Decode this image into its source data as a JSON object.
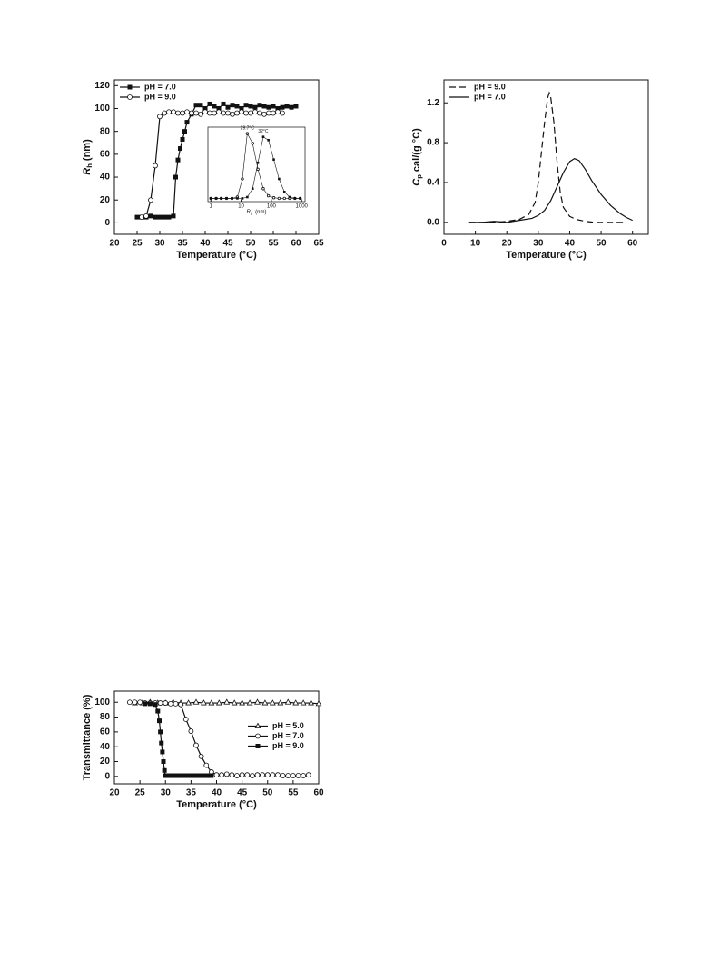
{
  "chart_data": [
    {
      "type": "line",
      "x_label": "Temperature (°C)",
      "y_label": {
        "symbol": "R",
        "subscript": "h",
        "unit": "(nm)"
      },
      "xlim": [
        20,
        65
      ],
      "xticks": [
        20,
        25,
        30,
        35,
        40,
        45,
        50,
        55,
        60,
        65
      ],
      "ylim": [
        -10,
        125
      ],
      "yticks": [
        0,
        20,
        40,
        60,
        80,
        100,
        120
      ],
      "legend": "upper left",
      "series": [
        {
          "name": "pH = 7.0",
          "color": "#111111",
          "marker": "square",
          "line": "solid",
          "x": [
            25,
            26,
            27,
            28,
            29,
            30,
            31,
            32,
            33,
            33.5,
            34,
            34.5,
            35,
            35.5,
            36,
            37,
            38,
            39,
            40,
            41,
            42,
            43,
            44,
            45,
            46,
            47,
            48,
            49,
            50,
            51,
            52,
            53,
            54,
            55,
            56,
            57,
            58,
            59,
            60
          ],
          "values": [
            5,
            5,
            5,
            6,
            5,
            5,
            5,
            5,
            6,
            40,
            55,
            65,
            73,
            80,
            88,
            95,
            103,
            103,
            100,
            104,
            102,
            100,
            104,
            101,
            103,
            102,
            100,
            103,
            102,
            101,
            103,
            102,
            101,
            102,
            100,
            101,
            102,
            101,
            102
          ]
        },
        {
          "name": "pH = 9.0",
          "color": "#111111",
          "marker": "circle",
          "line": "solid",
          "x": [
            26,
            27,
            28,
            29,
            30,
            31,
            32,
            33,
            34,
            35,
            36,
            37,
            38,
            39,
            40,
            41,
            42,
            43,
            44,
            45,
            46,
            47,
            48,
            49,
            50,
            51,
            52,
            53,
            54,
            55,
            56,
            57
          ],
          "values": [
            5,
            6,
            20,
            50,
            93,
            96,
            97,
            97,
            96,
            96,
            97,
            96,
            96,
            95,
            97,
            96,
            96,
            97,
            96,
            96,
            95,
            96,
            97,
            96,
            96,
            97,
            96,
            95,
            96,
            96,
            97,
            96
          ]
        }
      ]
    },
    {
      "type": "line",
      "xscale": "log",
      "x_label": {
        "symbol": "R",
        "subscript": "h",
        "unit": "(nm)"
      },
      "xlim": [
        0.8,
        1300
      ],
      "xticks": [
        1,
        10,
        100,
        1000
      ],
      "ylim": [
        -0.05,
        1.1
      ],
      "label_series": true,
      "series": [
        {
          "name": "29.7°C",
          "color": "#111111",
          "marker": "circle",
          "line": "solid",
          "x": [
            1,
            1.5,
            2.2,
            3.3,
            5,
            7.5,
            11,
            16,
            24,
            36,
            54,
            80,
            120,
            180,
            270,
            400,
            600,
            900
          ],
          "values": [
            0,
            0,
            0,
            0,
            0,
            0.02,
            0.3,
            1.0,
            0.85,
            0.45,
            0.15,
            0.04,
            0.01,
            0,
            0,
            0,
            0,
            0
          ]
        },
        {
          "name": "32°C",
          "color": "#111111",
          "marker": "square",
          "line": "solid",
          "x": [
            1,
            1.5,
            2.2,
            3.3,
            5,
            7.5,
            11,
            16,
            24,
            36,
            54,
            80,
            120,
            180,
            270,
            400,
            600,
            900
          ],
          "values": [
            0,
            0,
            0,
            0,
            0,
            0,
            0,
            0.02,
            0.15,
            0.55,
            0.95,
            0.9,
            0.6,
            0.3,
            0.1,
            0.02,
            0,
            0
          ]
        }
      ]
    },
    {
      "type": "line",
      "x_label": "Temperature (°C)",
      "y_label": {
        "symbol": "C",
        "subscript": "p",
        "unit": "cal/(g °C)"
      },
      "xlim": [
        0,
        65
      ],
      "xticks": [
        0,
        10,
        20,
        30,
        40,
        50,
        60
      ],
      "ylim": [
        -0.12,
        1.43
      ],
      "yticks": [
        {
          "value": 0,
          "label": "0.0"
        },
        {
          "value": 0.4,
          "label": "0.4"
        },
        {
          "value": 0.8,
          "label": "0.8"
        },
        {
          "value": 1.2,
          "label": "1.2"
        }
      ],
      "legend": "upper left",
      "series": [
        {
          "name": "pH = 9.0",
          "color": "#111111",
          "marker": "none",
          "line": "dashed",
          "x": [
            8,
            12,
            16,
            20,
            24,
            27,
            29,
            30,
            31,
            32,
            33,
            33.5,
            34,
            35,
            36,
            37,
            38,
            40,
            42,
            45,
            48,
            50,
            52,
            55,
            57
          ],
          "values": [
            0,
            0,
            0,
            0.01,
            0.03,
            0.08,
            0.2,
            0.4,
            0.7,
            1.0,
            1.25,
            1.3,
            1.25,
            1.0,
            0.6,
            0.3,
            0.15,
            0.06,
            0.03,
            0.01,
            0,
            0,
            0,
            0,
            0
          ]
        },
        {
          "name": "pH = 7.0",
          "color": "#111111",
          "marker": "none",
          "line": "solid",
          "x": [
            8,
            12,
            16,
            20,
            24,
            28,
            30,
            32,
            34,
            36,
            38,
            40,
            41.5,
            43,
            45,
            47,
            50,
            53,
            56,
            58,
            60
          ],
          "values": [
            0,
            0,
            0.01,
            0,
            0.02,
            0.04,
            0.07,
            0.12,
            0.22,
            0.36,
            0.5,
            0.61,
            0.64,
            0.62,
            0.53,
            0.42,
            0.28,
            0.17,
            0.09,
            0.05,
            0.02
          ]
        }
      ]
    },
    {
      "type": "line",
      "x_label": "Temperature (°C)",
      "y_label": "Transmittance (%)",
      "xlim": [
        20,
        60
      ],
      "xticks": [
        20,
        25,
        30,
        35,
        40,
        45,
        50,
        55,
        60
      ],
      "ylim": [
        -10,
        115
      ],
      "yticks": [
        0,
        20,
        40,
        60,
        80,
        100
      ],
      "legend": "center right",
      "series": [
        {
          "name": "pH = 5.0",
          "color": "#111111",
          "marker": "triangle",
          "line": "solid",
          "x": [
            24,
            25.5,
            27,
            28.5,
            30,
            31.5,
            33,
            34.5,
            36,
            37.5,
            39,
            40.5,
            42,
            43.5,
            45,
            46.5,
            48,
            49.5,
            51,
            52.5,
            54,
            55.5,
            57,
            58.5,
            60
          ],
          "values": [
            99,
            99,
            100,
            99,
            99,
            100,
            99,
            99,
            100,
            99,
            99,
            99,
            100,
            99,
            99,
            99,
            100,
            99,
            99,
            99,
            100,
            99,
            99,
            99,
            98
          ]
        },
        {
          "name": "pH = 7.0",
          "color": "#111111",
          "marker": "circle",
          "line": "solid",
          "x": [
            23,
            24,
            25,
            26,
            27,
            28,
            29,
            30,
            31,
            32,
            33,
            34,
            35,
            36,
            37,
            38,
            39,
            40,
            41,
            42,
            43,
            44,
            45,
            46,
            47,
            48,
            49,
            50,
            51,
            52,
            53,
            54,
            55,
            56,
            57,
            58
          ],
          "values": [
            100,
            100,
            100,
            99,
            99,
            99,
            99,
            99,
            98,
            98,
            97,
            77,
            61,
            42,
            27,
            15,
            6,
            2,
            2,
            3,
            2,
            1,
            2,
            2,
            1,
            2,
            2,
            2,
            2,
            2,
            1,
            1,
            1,
            1,
            1,
            2
          ]
        },
        {
          "name": "pH = 9.0",
          "color": "#111111",
          "marker": "square",
          "line": "solid",
          "x": [
            26,
            27,
            28,
            28.5,
            28.8,
            29,
            29.2,
            29.4,
            29.6,
            29.8,
            30,
            30.5,
            31,
            31.5,
            32,
            32.5,
            33,
            33.5,
            34,
            34.5,
            35,
            35.5,
            36,
            36.5,
            37,
            37.5,
            38,
            38.5,
            39
          ],
          "values": [
            98,
            98,
            97,
            88,
            75,
            60,
            45,
            33,
            20,
            8,
            1,
            1,
            1,
            1,
            1,
            1,
            1,
            1,
            1,
            1,
            1,
            1,
            1,
            1,
            1,
            1,
            1,
            1,
            1
          ]
        }
      ]
    }
  ]
}
